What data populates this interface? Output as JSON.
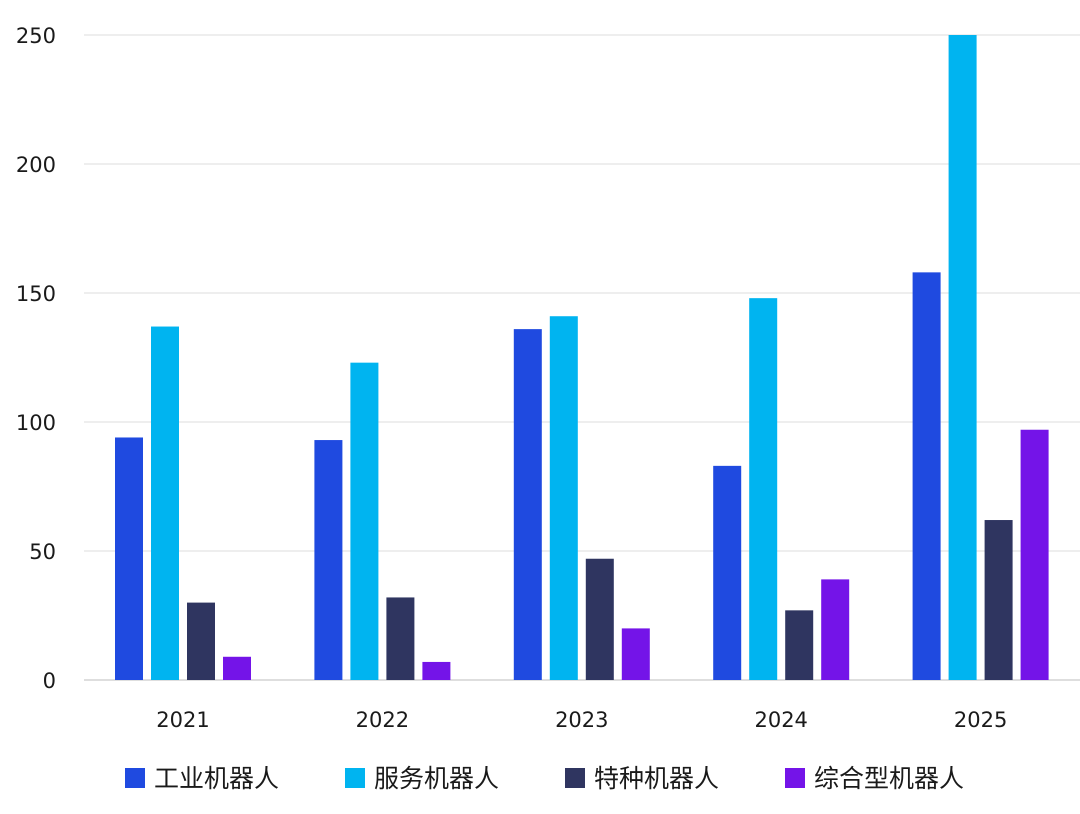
{
  "chart_data": {
    "type": "bar",
    "categories": [
      "2021",
      "2022",
      "2023",
      "2024",
      "2025"
    ],
    "series": [
      {
        "name": "工业机器人",
        "color": "#1f4ae0",
        "values": [
          94,
          93,
          136,
          83,
          158
        ]
      },
      {
        "name": "服务机器人",
        "color": "#00b4f0",
        "values": [
          137,
          123,
          141,
          148,
          250
        ]
      },
      {
        "name": "特种机器人",
        "color": "#2f3560",
        "values": [
          30,
          32,
          47,
          27,
          62
        ]
      },
      {
        "name": "综合型机器人",
        "color": "#7414e8",
        "values": [
          9,
          7,
          20,
          39,
          97
        ]
      }
    ],
    "ylim": [
      0,
      250
    ],
    "yticks": [
      "0",
      "50",
      "100",
      "150",
      "200",
      "250"
    ],
    "grid": true,
    "legend_position": "bottom"
  }
}
